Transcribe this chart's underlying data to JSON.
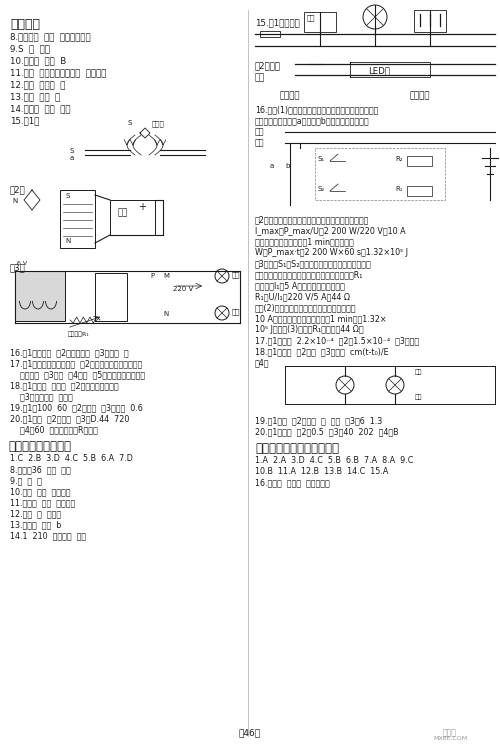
{
  "background_color": "#ffffff",
  "page_number": "-46-",
  "fig_w": 5.0,
  "fig_h": 7.46,
  "dpi": 100
}
